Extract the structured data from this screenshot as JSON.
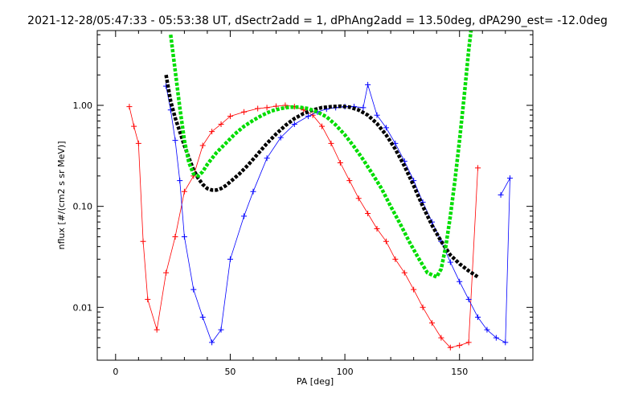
{
  "chart_data": {
    "type": "scatter",
    "title": "2021-12-28/05:47:33 - 05:53:38 UT, dSectr2add = 1, dPhAng2add = 13.50deg, dPA290_est= -12.0deg",
    "xlabel": "PA [deg]",
    "ylabel": "nflux [#/(cm2 s sr MeV)]",
    "xlim": [
      -8,
      182
    ],
    "ylim": [
      0.003,
      5.5
    ],
    "yscale": "log",
    "x_ticks": [
      "0",
      "50",
      "100",
      "150"
    ],
    "y_ticks": [
      "0.01",
      "0.10",
      "1.00"
    ],
    "grid": false,
    "series": [
      {
        "color": "#ff0000",
        "points": [
          [
            6,
            0.97
          ],
          [
            8,
            0.62
          ],
          [
            10,
            0.42
          ],
          [
            12,
            0.045
          ],
          [
            14,
            0.012
          ],
          [
            18,
            0.006
          ],
          [
            22,
            0.022
          ],
          [
            26,
            0.05
          ],
          [
            30,
            0.14
          ],
          [
            34,
            0.2
          ],
          [
            38,
            0.4
          ],
          [
            42,
            0.55
          ],
          [
            46,
            0.65
          ],
          [
            50,
            0.78
          ],
          [
            56,
            0.86
          ],
          [
            62,
            0.93
          ],
          [
            66,
            0.95
          ],
          [
            70,
            0.98
          ],
          [
            74,
            1.0
          ],
          [
            78,
            0.97
          ],
          [
            82,
            0.9
          ],
          [
            86,
            0.8
          ],
          [
            90,
            0.62
          ],
          [
            94,
            0.42
          ],
          [
            98,
            0.27
          ],
          [
            102,
            0.18
          ],
          [
            106,
            0.12
          ],
          [
            110,
            0.085
          ],
          [
            114,
            0.06
          ],
          [
            118,
            0.045
          ],
          [
            122,
            0.03
          ],
          [
            126,
            0.022
          ],
          [
            130,
            0.015
          ],
          [
            134,
            0.01
          ],
          [
            138,
            0.007
          ],
          [
            142,
            0.005
          ],
          [
            146,
            0.004
          ],
          [
            150,
            0.0042
          ],
          [
            154,
            0.0045
          ],
          [
            158,
            0.24
          ]
        ]
      },
      {
        "color": "#0000ff",
        "points": [
          [
            22,
            1.55
          ],
          [
            24,
            0.9
          ],
          [
            26,
            0.45
          ],
          [
            28,
            0.18
          ],
          [
            30,
            0.05
          ],
          [
            34,
            0.015
          ],
          [
            38,
            0.008
          ],
          [
            42,
            0.0045
          ],
          [
            46,
            0.006
          ],
          [
            50,
            0.03
          ],
          [
            56,
            0.08
          ],
          [
            60,
            0.14
          ],
          [
            66,
            0.3
          ],
          [
            72,
            0.48
          ],
          [
            78,
            0.65
          ],
          [
            84,
            0.78
          ],
          [
            88,
            0.86
          ],
          [
            92,
            0.92
          ],
          [
            96,
            0.95
          ],
          [
            100,
            0.97
          ],
          [
            104,
            0.97
          ],
          [
            108,
            0.95
          ],
          [
            110,
            1.6
          ],
          [
            114,
            0.8
          ],
          [
            118,
            0.6
          ],
          [
            122,
            0.42
          ],
          [
            126,
            0.28
          ],
          [
            130,
            0.18
          ],
          [
            134,
            0.11
          ],
          [
            138,
            0.07
          ],
          [
            142,
            0.045
          ],
          [
            146,
            0.028
          ],
          [
            150,
            0.018
          ],
          [
            154,
            0.012
          ],
          [
            158,
            0.008
          ],
          [
            162,
            0.006
          ],
          [
            166,
            0.005
          ],
          [
            170,
            0.0045
          ],
          [
            172,
            0.19
          ],
          [
            168,
            0.13
          ]
        ]
      },
      {
        "color": "#000000",
        "points": [
          [
            22,
            2.0
          ],
          [
            24,
            1.1
          ],
          [
            26,
            0.75
          ],
          [
            28,
            0.55
          ],
          [
            30,
            0.4
          ],
          [
            32,
            0.3
          ],
          [
            34,
            0.23
          ],
          [
            36,
            0.19
          ],
          [
            38,
            0.165
          ],
          [
            40,
            0.15
          ],
          [
            42,
            0.145
          ],
          [
            44,
            0.145
          ],
          [
            46,
            0.15
          ],
          [
            48,
            0.16
          ],
          [
            50,
            0.175
          ],
          [
            54,
            0.21
          ],
          [
            58,
            0.26
          ],
          [
            62,
            0.33
          ],
          [
            66,
            0.42
          ],
          [
            70,
            0.52
          ],
          [
            74,
            0.63
          ],
          [
            78,
            0.74
          ],
          [
            82,
            0.83
          ],
          [
            86,
            0.9
          ],
          [
            90,
            0.95
          ],
          [
            94,
            0.97
          ],
          [
            98,
            0.98
          ],
          [
            102,
            0.96
          ],
          [
            106,
            0.9
          ],
          [
            110,
            0.8
          ],
          [
            114,
            0.66
          ],
          [
            118,
            0.51
          ],
          [
            122,
            0.37
          ],
          [
            126,
            0.25
          ],
          [
            130,
            0.16
          ],
          [
            134,
            0.1
          ],
          [
            138,
            0.065
          ],
          [
            142,
            0.045
          ],
          [
            146,
            0.033
          ],
          [
            150,
            0.027
          ],
          [
            154,
            0.023
          ],
          [
            158,
            0.02
          ]
        ]
      },
      {
        "color": "#00dd00",
        "points": [
          [
            24,
            5.0
          ],
          [
            26,
            2.2
          ],
          [
            28,
            0.95
          ],
          [
            30,
            0.45
          ],
          [
            32,
            0.27
          ],
          [
            34,
            0.21
          ],
          [
            36,
            0.2
          ],
          [
            38,
            0.22
          ],
          [
            40,
            0.26
          ],
          [
            44,
            0.34
          ],
          [
            48,
            0.42
          ],
          [
            52,
            0.52
          ],
          [
            56,
            0.62
          ],
          [
            60,
            0.71
          ],
          [
            64,
            0.8
          ],
          [
            68,
            0.88
          ],
          [
            72,
            0.93
          ],
          [
            76,
            0.96
          ],
          [
            80,
            0.96
          ],
          [
            84,
            0.93
          ],
          [
            88,
            0.86
          ],
          [
            92,
            0.77
          ],
          [
            96,
            0.64
          ],
          [
            100,
            0.51
          ],
          [
            104,
            0.39
          ],
          [
            108,
            0.29
          ],
          [
            112,
            0.21
          ],
          [
            116,
            0.15
          ],
          [
            120,
            0.1
          ],
          [
            124,
            0.068
          ],
          [
            128,
            0.045
          ],
          [
            132,
            0.031
          ],
          [
            136,
            0.022
          ],
          [
            140,
            0.02
          ],
          [
            142,
            0.024
          ],
          [
            144,
            0.04
          ],
          [
            146,
            0.08
          ],
          [
            148,
            0.18
          ],
          [
            150,
            0.45
          ],
          [
            152,
            1.2
          ],
          [
            154,
            3.5
          ],
          [
            155,
            5.5
          ]
        ]
      }
    ]
  }
}
